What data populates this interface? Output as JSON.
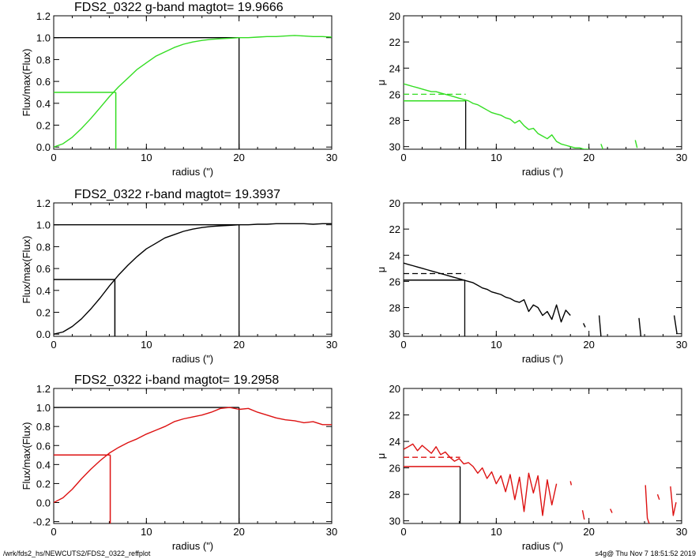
{
  "footer": {
    "left": "/wrk/fds2_hs/NEWCUTS2/FDS2_0322_reffplot",
    "right": "s4g@  Thu Nov  7 18:51:52 2019"
  },
  "chart_data": [
    {
      "type": "line",
      "title": "FDS2_0322 g-band  magtot=     19.9666",
      "xlabel": "radius (\")",
      "ylabel": "Flux/max(Flux)",
      "xlim": [
        0,
        30
      ],
      "ylim": [
        -0.02,
        1.2
      ],
      "xticks": [
        "0",
        "10",
        "20",
        "30"
      ],
      "yticks": [
        "0.0",
        "0.2",
        "0.4",
        "0.6",
        "0.8",
        "1.0",
        "1.2"
      ],
      "color": "#33dd22",
      "series": [
        {
          "x": [
            0,
            1,
            2,
            3,
            4,
            5,
            6,
            7,
            8,
            9,
            10,
            11,
            12,
            13,
            14,
            15,
            16,
            17,
            18,
            19,
            20,
            21,
            22,
            23,
            24,
            25,
            26,
            27,
            28,
            29,
            30
          ],
          "values": [
            0.0,
            0.03,
            0.09,
            0.17,
            0.26,
            0.36,
            0.46,
            0.55,
            0.63,
            0.71,
            0.77,
            0.83,
            0.87,
            0.91,
            0.94,
            0.96,
            0.975,
            0.985,
            0.99,
            0.995,
            1.0,
            1.0,
            1.005,
            1.01,
            1.01,
            1.015,
            1.02,
            1.015,
            1.01,
            1.01,
            1.005
          ]
        }
      ],
      "half_light": {
        "x": 6.7,
        "y": 0.5
      },
      "total": {
        "x": 20,
        "y": 1.0
      }
    },
    {
      "type": "line",
      "xlabel": "radius (\")",
      "ylabel": "μ",
      "xlim": [
        0,
        30
      ],
      "ylim": [
        30.2,
        20
      ],
      "xticks": [
        "0",
        "10",
        "20",
        "30"
      ],
      "yticks": [
        "20",
        "22",
        "24",
        "26",
        "28",
        "30"
      ],
      "color": "#33dd22",
      "series": [
        {
          "x": [
            0,
            0.5,
            1,
            1.5,
            2,
            2.5,
            3,
            3.5,
            4,
            4.5,
            5,
            5.5,
            6,
            6.5,
            7,
            7.5,
            8,
            8.5,
            9,
            9.5,
            10,
            10.5,
            11,
            11.5,
            12,
            12.5,
            13,
            13.5,
            14,
            14.5,
            15,
            15.5,
            16,
            16.5,
            17,
            17.5,
            18,
            18.5,
            19,
            19.5,
            20
          ],
          "values": [
            25.2,
            25.3,
            25.4,
            25.5,
            25.6,
            25.7,
            25.8,
            25.8,
            25.9,
            26.0,
            26.1,
            26.2,
            26.3,
            26.4,
            26.5,
            26.7,
            26.8,
            27.0,
            27.2,
            27.4,
            27.5,
            27.6,
            27.8,
            27.9,
            28.2,
            28.0,
            28.4,
            28.7,
            28.6,
            29.0,
            29.2,
            29.4,
            29.1,
            29.6,
            29.8,
            29.9,
            30.0,
            30.1,
            30.1,
            30.2,
            30.2
          ]
        },
        {
          "x": [
            21.3,
            21.5
          ],
          "values": [
            29.8,
            30.2
          ]
        },
        {
          "x": [
            25.0,
            25.2
          ],
          "values": [
            29.5,
            30.1
          ]
        }
      ],
      "mean_level": {
        "x": 6.7,
        "y": 26.0
      },
      "reff_level": {
        "x": 6.7,
        "y": 26.5
      }
    },
    {
      "type": "line",
      "title": "FDS2_0322 r-band  magtot=     19.3937",
      "xlabel": "radius (\")",
      "ylabel": "Flux/max(Flux)",
      "xlim": [
        0,
        30
      ],
      "ylim": [
        -0.02,
        1.2
      ],
      "xticks": [
        "0",
        "10",
        "20",
        "30"
      ],
      "yticks": [
        "0.0",
        "0.2",
        "0.4",
        "0.6",
        "0.8",
        "1.0",
        "1.2"
      ],
      "color": "#000000",
      "series": [
        {
          "x": [
            0,
            1,
            2,
            3,
            4,
            5,
            6,
            7,
            8,
            9,
            10,
            11,
            12,
            13,
            14,
            15,
            16,
            17,
            18,
            19,
            20,
            21,
            22,
            23,
            24,
            25,
            26,
            27,
            28,
            29,
            30
          ],
          "values": [
            0.0,
            0.02,
            0.07,
            0.14,
            0.23,
            0.33,
            0.44,
            0.54,
            0.63,
            0.71,
            0.78,
            0.83,
            0.88,
            0.91,
            0.94,
            0.96,
            0.975,
            0.985,
            0.99,
            0.995,
            1.0,
            1.0,
            1.005,
            1.005,
            1.01,
            1.01,
            1.01,
            1.01,
            1.005,
            1.01,
            1.01
          ]
        }
      ],
      "half_light": {
        "x": 6.6,
        "y": 0.5
      },
      "total": {
        "x": 20,
        "y": 1.0
      }
    },
    {
      "type": "line",
      "xlabel": "radius (\")",
      "ylabel": "μ",
      "xlim": [
        0,
        30
      ],
      "ylim": [
        30.2,
        20
      ],
      "xticks": [
        "0",
        "10",
        "20",
        "30"
      ],
      "yticks": [
        "20",
        "22",
        "24",
        "26",
        "28",
        "30"
      ],
      "color": "#000000",
      "series": [
        {
          "x": [
            0,
            0.5,
            1,
            1.5,
            2,
            2.5,
            3,
            3.5,
            4,
            4.5,
            5,
            5.5,
            6,
            6.5,
            7,
            7.5,
            8,
            8.5,
            9,
            9.5,
            10,
            10.5,
            11,
            11.5,
            12,
            12.5,
            13,
            13.5,
            14,
            14.5,
            15,
            15.5,
            16,
            16.5,
            17,
            17.5,
            18
          ],
          "values": [
            24.6,
            24.7,
            24.8,
            24.9,
            25.0,
            25.1,
            25.2,
            25.3,
            25.4,
            25.5,
            25.6,
            25.7,
            25.8,
            25.9,
            26.0,
            26.1,
            26.3,
            26.5,
            26.6,
            26.8,
            26.9,
            27.0,
            27.2,
            27.3,
            27.5,
            27.6,
            27.4,
            28.3,
            27.8,
            28.0,
            28.6,
            28.3,
            28.9,
            27.8,
            29.1,
            28.2,
            28.6
          ]
        },
        {
          "x": [
            19.4,
            19.6
          ],
          "values": [
            29.2,
            29.5
          ]
        },
        {
          "x": [
            21.1,
            21.3
          ],
          "values": [
            28.6,
            30.2
          ]
        },
        {
          "x": [
            25.4,
            25.6
          ],
          "values": [
            28.8,
            30.2
          ]
        },
        {
          "x": [
            29.2,
            29.5
          ],
          "values": [
            28.6,
            30.0
          ]
        }
      ],
      "mean_level": {
        "x": 6.6,
        "y": 25.4
      },
      "reff_level": {
        "x": 6.6,
        "y": 25.9
      }
    },
    {
      "type": "line",
      "title": "FDS2_0322 i-band  magtot=     19.2958",
      "xlabel": "radius (\")",
      "ylabel": "Flux/max(Flux)",
      "xlim": [
        0,
        30
      ],
      "ylim": [
        -0.22,
        1.2
      ],
      "xticks": [
        "0",
        "10",
        "20",
        "30"
      ],
      "yticks": [
        "-0.2",
        "0.0",
        "0.2",
        "0.4",
        "0.6",
        "0.8",
        "1.0",
        "1.2"
      ],
      "color": "#dd1111",
      "series": [
        {
          "x": [
            0,
            1,
            2,
            3,
            4,
            5,
            6,
            7,
            8,
            9,
            10,
            11,
            12,
            13,
            14,
            15,
            16,
            17,
            18,
            19,
            20,
            21,
            22,
            23,
            24,
            25,
            26,
            27,
            28,
            29,
            30
          ],
          "values": [
            0.0,
            0.05,
            0.14,
            0.25,
            0.35,
            0.44,
            0.52,
            0.58,
            0.63,
            0.67,
            0.72,
            0.76,
            0.8,
            0.85,
            0.88,
            0.9,
            0.92,
            0.95,
            0.99,
            1.0,
            0.98,
            0.99,
            0.95,
            0.92,
            0.89,
            0.87,
            0.86,
            0.84,
            0.85,
            0.82,
            0.82
          ]
        }
      ],
      "half_light": {
        "x": 6.1,
        "y": 0.5
      },
      "total": {
        "x": 20,
        "y": 1.0
      }
    },
    {
      "type": "line",
      "xlabel": "radius (\")",
      "ylabel": "μ",
      "xlim": [
        0,
        30
      ],
      "ylim": [
        30.2,
        20
      ],
      "xticks": [
        "0",
        "10",
        "20",
        "30"
      ],
      "yticks": [
        "20",
        "22",
        "24",
        "26",
        "28",
        "30"
      ],
      "color": "#dd1111",
      "series": [
        {
          "x": [
            0,
            0.5,
            1,
            1.5,
            2,
            2.5,
            3,
            3.5,
            4,
            4.5,
            5,
            5.5,
            6,
            6.5,
            7,
            7.5,
            8,
            8.5,
            9,
            9.5,
            10,
            10.5,
            11,
            11.5,
            12,
            12.5,
            13,
            13.5,
            14,
            14.5,
            15,
            15.5,
            16,
            16.5
          ],
          "values": [
            24.6,
            24.4,
            24.2,
            24.7,
            24.3,
            24.6,
            24.9,
            24.4,
            25.0,
            24.8,
            25.2,
            25.5,
            25.3,
            25.7,
            25.6,
            25.9,
            26.4,
            26.0,
            26.8,
            26.3,
            27.2,
            26.6,
            27.8,
            26.5,
            28.4,
            26.7,
            29.3,
            26.4,
            27.9,
            26.6,
            29.6,
            26.9,
            28.8,
            27.2
          ]
        },
        {
          "x": [
            18.0,
            18.1
          ],
          "values": [
            27.0,
            27.3
          ]
        },
        {
          "x": [
            19.3,
            19.5
          ],
          "values": [
            29.2,
            29.9
          ]
        },
        {
          "x": [
            22.3,
            22.5
          ],
          "values": [
            29.1,
            29.4
          ]
        },
        {
          "x": [
            26.1,
            26.3,
            26.5
          ],
          "values": [
            27.3,
            29.8,
            30.2
          ]
        },
        {
          "x": [
            27.4,
            27.6
          ],
          "values": [
            28.0,
            28.4
          ]
        },
        {
          "x": [
            28.8,
            29.1,
            29.4
          ],
          "values": [
            27.4,
            29.6,
            28.6
          ]
        }
      ],
      "mean_level": {
        "x": 6.1,
        "y": 25.2
      },
      "reff_level": {
        "x": 6.1,
        "y": 25.9
      }
    }
  ]
}
